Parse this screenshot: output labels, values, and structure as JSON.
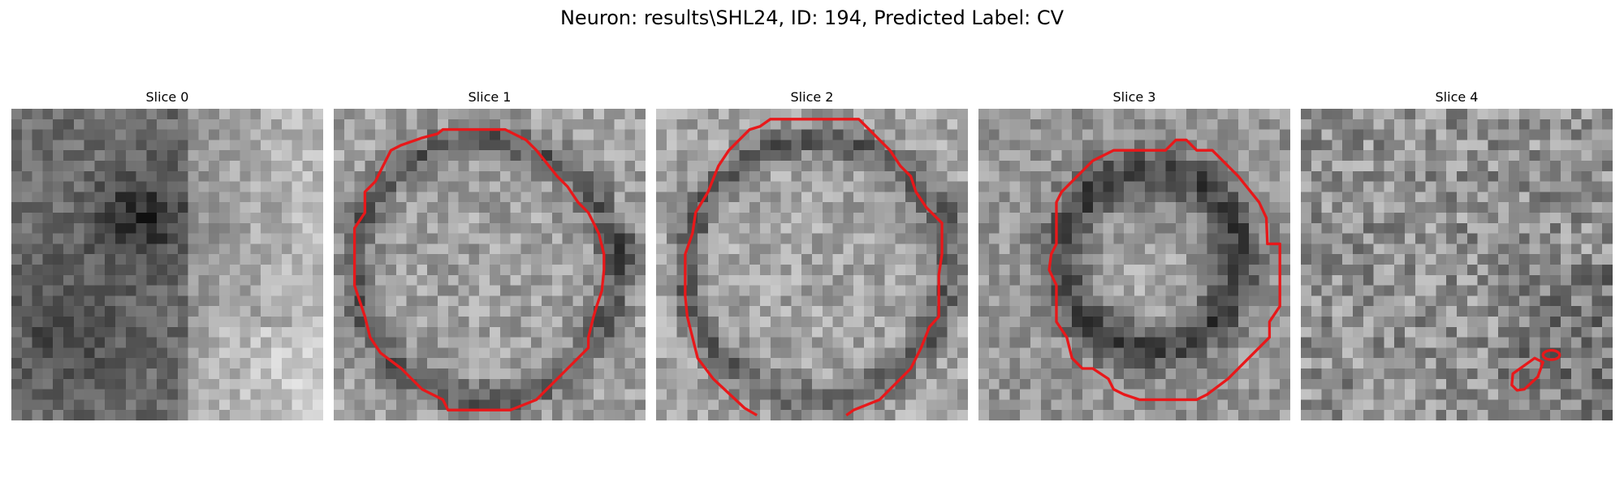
{
  "figure": {
    "title": "Neuron: results\\SHL24, ID: 194, Predicted Label: CV"
  },
  "colors": {
    "contour": "#e8181a",
    "background": "#ffffff"
  },
  "slices": [
    {
      "label": "Slice 0"
    },
    {
      "label": "Slice 1"
    },
    {
      "label": "Slice 2"
    },
    {
      "label": "Slice 3"
    },
    {
      "label": "Slice 4"
    }
  ]
}
